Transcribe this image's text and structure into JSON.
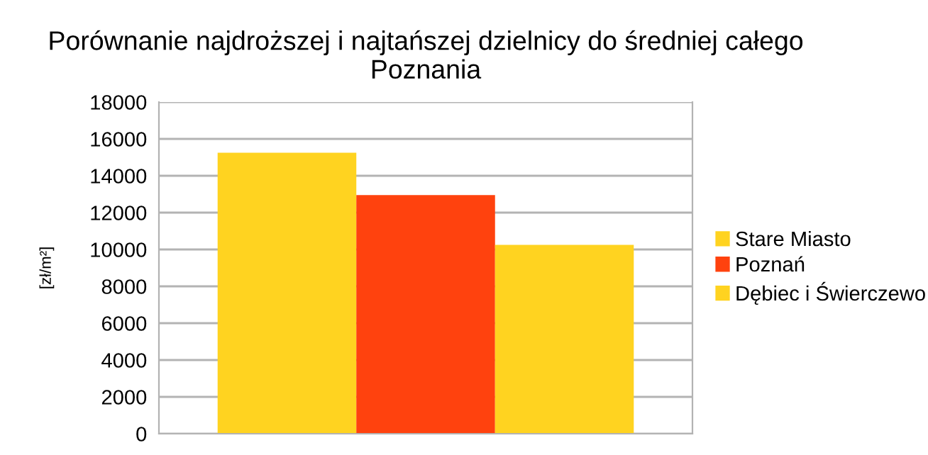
{
  "chart_data": {
    "type": "bar",
    "title": "Porównanie najdroższej i najtańszej dzielnicy do średniej całego\nPoznania",
    "ylabel": "[zł/m²]",
    "categories": [
      null
    ],
    "series": [
      {
        "name": "Stare Miasto",
        "color": "#ffd320",
        "values": [
          15250
        ]
      },
      {
        "name": "Poznań",
        "color": "#ff420e",
        "values": [
          12950
        ]
      },
      {
        "name": "Dębiec i Świerczewo",
        "color": "#ffd320",
        "values": [
          10250
        ]
      }
    ],
    "ylim": [
      0,
      18000
    ],
    "yticks": [
      0,
      2000,
      4000,
      6000,
      8000,
      10000,
      12000,
      14000,
      16000,
      18000
    ],
    "grid": "y",
    "legend": "right"
  }
}
